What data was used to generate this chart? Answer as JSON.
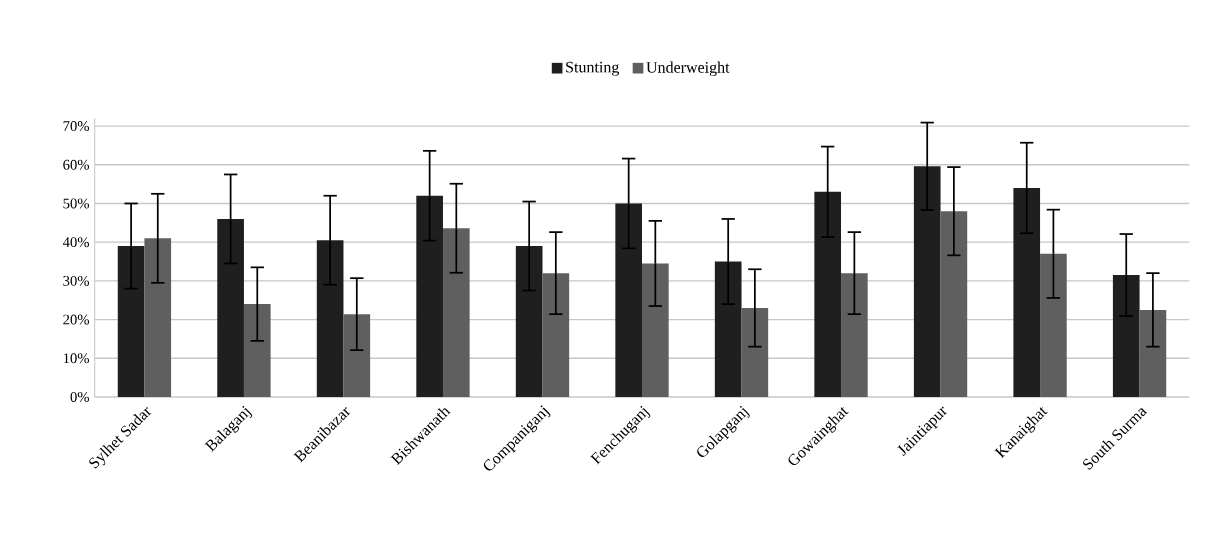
{
  "chart_data": {
    "type": "bar",
    "categories": [
      "Sylhet Sadar",
      "Balaganj",
      "Beanibazar",
      "Bishwanath",
      "Companiganj",
      "Fenchuganj",
      "Golapganj",
      "Gowainghat",
      "Jaintiapur",
      "Kanaighat",
      "South Surma"
    ],
    "series": [
      {
        "name": "Stunting",
        "color": "#1f1f1f",
        "values": [
          39,
          46,
          40.5,
          52,
          39,
          50,
          35,
          53,
          59.6,
          54,
          31.5
        ],
        "errors": [
          11,
          11.5,
          11.5,
          11.6,
          11.5,
          11.6,
          11,
          11.7,
          11.3,
          11.7,
          10.6
        ]
      },
      {
        "name": "Underweight",
        "color": "#5f5f5f",
        "values": [
          41,
          24,
          21.4,
          43.6,
          32,
          34.5,
          23,
          32,
          48,
          37,
          22.5
        ],
        "errors": [
          11.5,
          9.5,
          9.3,
          11.5,
          10.6,
          11,
          10,
          10.6,
          11.4,
          11.4,
          9.5
        ]
      }
    ],
    "ylim": [
      0,
      72
    ],
    "yticks": [
      {
        "value": 0,
        "label": "0%"
      },
      {
        "value": 10,
        "label": "10%"
      },
      {
        "value": 20,
        "label": "20%"
      },
      {
        "value": 30,
        "label": "30%"
      },
      {
        "value": 40,
        "label": "40%"
      },
      {
        "value": 50,
        "label": "50%"
      },
      {
        "value": 60,
        "label": "60%"
      },
      {
        "value": 70,
        "label": "70%"
      }
    ],
    "grid": "y",
    "legend": "top"
  }
}
